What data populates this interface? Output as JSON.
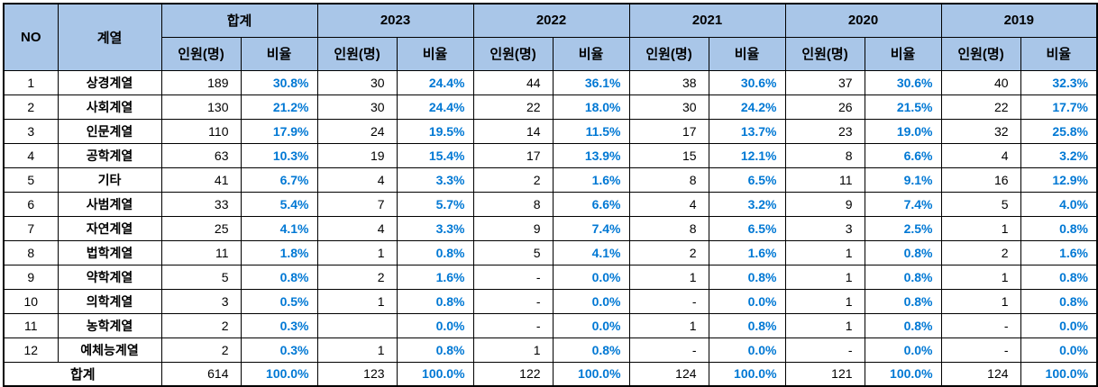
{
  "colors": {
    "header_bg": "#A9C6E8",
    "ratio_blue": "#0078D4",
    "border": "#000000"
  },
  "table": {
    "header": {
      "no": "NO",
      "category": "계열",
      "people": "인원(명)",
      "ratio": "비율"
    },
    "groups": [
      "합계",
      "2023",
      "2022",
      "2021",
      "2020",
      "2019"
    ],
    "rows": [
      {
        "no": "1",
        "category": "상경계열",
        "cells": [
          "189",
          "30.8%",
          "30",
          "24.4%",
          "44",
          "36.1%",
          "38",
          "30.6%",
          "37",
          "30.6%",
          "40",
          "32.3%"
        ]
      },
      {
        "no": "2",
        "category": "사회계열",
        "cells": [
          "130",
          "21.2%",
          "30",
          "24.4%",
          "22",
          "18.0%",
          "30",
          "24.2%",
          "26",
          "21.5%",
          "22",
          "17.7%"
        ]
      },
      {
        "no": "3",
        "category": "인문계열",
        "cells": [
          "110",
          "17.9%",
          "24",
          "19.5%",
          "14",
          "11.5%",
          "17",
          "13.7%",
          "23",
          "19.0%",
          "32",
          "25.8%"
        ]
      },
      {
        "no": "4",
        "category": "공학계열",
        "cells": [
          "63",
          "10.3%",
          "19",
          "15.4%",
          "17",
          "13.9%",
          "15",
          "12.1%",
          "8",
          "6.6%",
          "4",
          "3.2%"
        ]
      },
      {
        "no": "5",
        "category": "기타",
        "cells": [
          "41",
          "6.7%",
          "4",
          "3.3%",
          "2",
          "1.6%",
          "8",
          "6.5%",
          "11",
          "9.1%",
          "16",
          "12.9%"
        ]
      },
      {
        "no": "6",
        "category": "사범계열",
        "cells": [
          "33",
          "5.4%",
          "7",
          "5.7%",
          "8",
          "6.6%",
          "4",
          "3.2%",
          "9",
          "7.4%",
          "5",
          "4.0%"
        ]
      },
      {
        "no": "7",
        "category": "자연계열",
        "cells": [
          "25",
          "4.1%",
          "4",
          "3.3%",
          "9",
          "7.4%",
          "8",
          "6.5%",
          "3",
          "2.5%",
          "1",
          "0.8%"
        ]
      },
      {
        "no": "8",
        "category": "법학계열",
        "cells": [
          "11",
          "1.8%",
          "1",
          "0.8%",
          "5",
          "4.1%",
          "2",
          "1.6%",
          "1",
          "0.8%",
          "2",
          "1.6%"
        ]
      },
      {
        "no": "9",
        "category": "약학계열",
        "cells": [
          "5",
          "0.8%",
          "2",
          "1.6%",
          "-",
          "0.0%",
          "1",
          "0.8%",
          "1",
          "0.8%",
          "1",
          "0.8%"
        ]
      },
      {
        "no": "10",
        "category": "의학계열",
        "cells": [
          "3",
          "0.5%",
          "1",
          "0.8%",
          "-",
          "0.0%",
          "-",
          "0.0%",
          "1",
          "0.8%",
          "1",
          "0.8%"
        ]
      },
      {
        "no": "11",
        "category": "농학계열",
        "cells": [
          "2",
          "0.3%",
          "",
          "0.0%",
          "-",
          "0.0%",
          "1",
          "0.8%",
          "1",
          "0.8%",
          "-",
          "0.0%"
        ]
      },
      {
        "no": "12",
        "category": "예체능계열",
        "cells": [
          "2",
          "0.3%",
          "1",
          "0.8%",
          "1",
          "0.8%",
          "-",
          "0.0%",
          "-",
          "0.0%",
          "-",
          "0.0%"
        ]
      }
    ],
    "total": {
      "label": "합계",
      "cells": [
        "614",
        "100.0%",
        "123",
        "100.0%",
        "122",
        "100.0%",
        "124",
        "100.0%",
        "121",
        "100.0%",
        "124",
        "100.0%"
      ]
    }
  }
}
